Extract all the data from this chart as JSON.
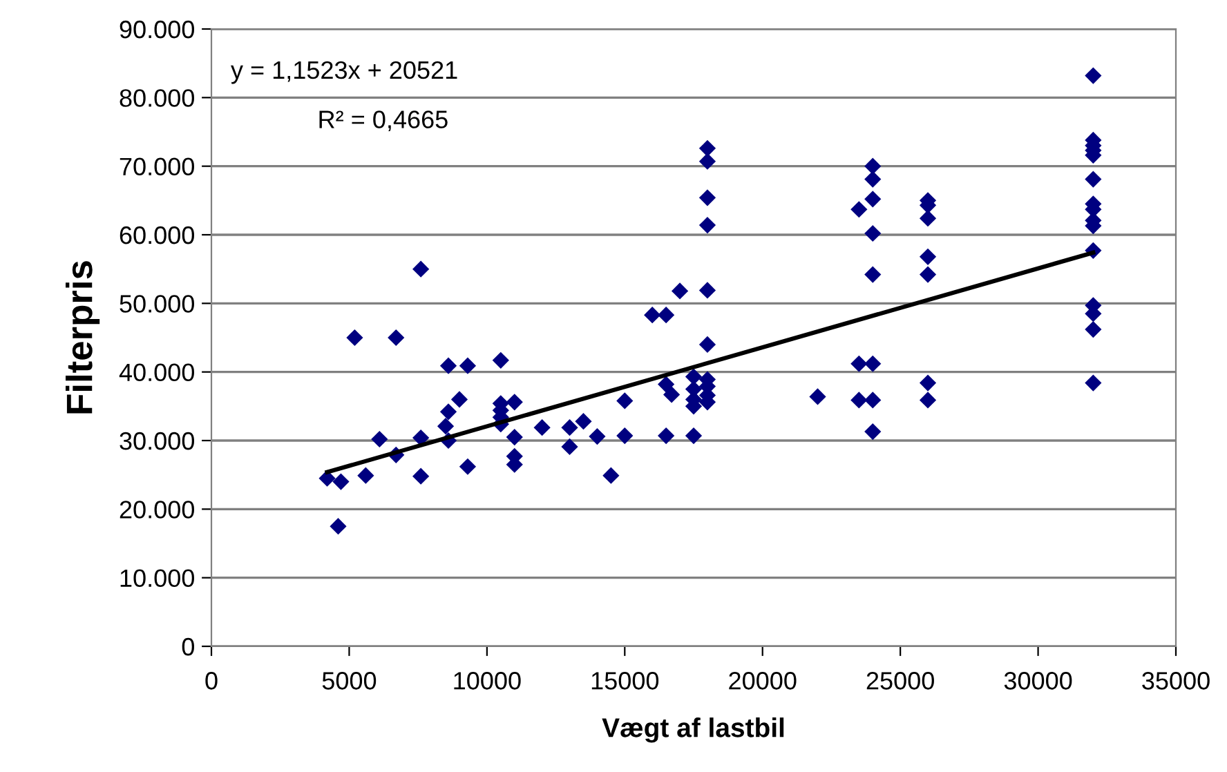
{
  "chart_data": {
    "type": "scatter",
    "xlabel": "Vægt af lastbil",
    "ylabel": "Filterpris",
    "annotations": [
      "y = 1,1523x + 20521",
      "R² = 0,4665"
    ],
    "xlim": [
      0,
      35000
    ],
    "xticks": [
      0,
      5000,
      10000,
      15000,
      20000,
      25000,
      30000,
      35000
    ],
    "ylim": [
      0,
      90000
    ],
    "yticks": [
      {
        "value": 0,
        "label": "0"
      },
      {
        "value": 10000,
        "label": "10.000"
      },
      {
        "value": 20000,
        "label": "20.000"
      },
      {
        "value": 30000,
        "label": "30.000"
      },
      {
        "value": 40000,
        "label": "40.000"
      },
      {
        "value": 50000,
        "label": "50.000"
      },
      {
        "value": 60000,
        "label": "60.000"
      },
      {
        "value": 70000,
        "label": "70.000"
      },
      {
        "value": 80000,
        "label": "80.000"
      },
      {
        "value": 90000,
        "label": "90.000"
      }
    ],
    "grid": "y",
    "marker": "diamond",
    "series": [
      {
        "color": "#000080",
        "x": [
          4200,
          4700,
          4600,
          5200,
          5600,
          6100,
          6700,
          6700,
          7600,
          7600,
          7600,
          8600,
          8600,
          8500,
          8600,
          9300,
          9000,
          9300,
          10500,
          10500,
          10500,
          10500,
          10500,
          11000,
          11000,
          11000,
          11000,
          12000,
          13000,
          13000,
          13500,
          14000,
          14500,
          15000,
          15000,
          16000,
          16500,
          16500,
          16700,
          16500,
          17000,
          17500,
          17500,
          17500,
          17500,
          17500,
          18000,
          18000,
          18000,
          18000,
          18000,
          18000,
          18000,
          18000,
          18000,
          18000,
          22000,
          23500,
          23500,
          23500,
          24000,
          24000,
          24000,
          24000,
          24000,
          24000,
          24000,
          24000,
          26000,
          26000,
          26000,
          26000,
          26000,
          26000,
          26000,
          32000,
          32000,
          32000,
          32000,
          32000,
          32000,
          32000,
          32000,
          32000,
          32000,
          32000,
          32000,
          32000,
          32000,
          32000
        ],
        "values": [
          24500,
          24000,
          17500,
          45000,
          24900,
          30200,
          45000,
          27900,
          55000,
          30400,
          24800,
          40900,
          34200,
          32100,
          30000,
          40900,
          36000,
          26200,
          41700,
          35400,
          34400,
          33400,
          32400,
          35600,
          30500,
          27700,
          26500,
          31900,
          31900,
          29100,
          32800,
          30600,
          24900,
          35800,
          30700,
          48300,
          48300,
          38200,
          36700,
          30700,
          51800,
          39300,
          37500,
          36000,
          35000,
          30700,
          72600,
          70700,
          65400,
          61400,
          51900,
          44000,
          38900,
          37900,
          36600,
          35600,
          36400,
          63700,
          41200,
          35900,
          70000,
          68100,
          65200,
          60200,
          54200,
          41200,
          35900,
          31300,
          65000,
          64300,
          62400,
          56800,
          54200,
          38400,
          35900,
          83200,
          73800,
          73000,
          72300,
          71600,
          68100,
          64500,
          63700,
          62100,
          61300,
          57700,
          49700,
          48500,
          46200,
          38400
        ]
      },
      {
        "type": "line",
        "color": "#000000",
        "marker": "none",
        "x": [
          4200,
          32000
        ],
        "values": [
          25400,
          57400
        ]
      }
    ]
  }
}
